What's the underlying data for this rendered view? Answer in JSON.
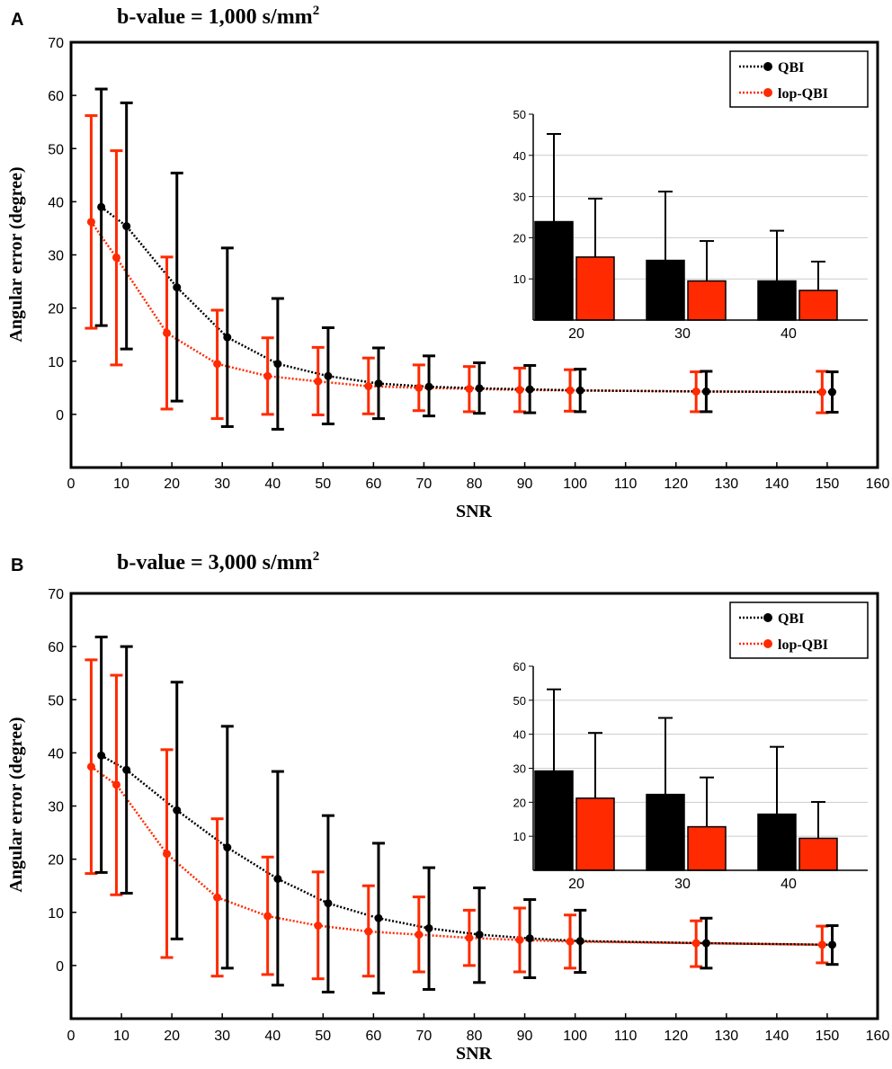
{
  "colors": {
    "qbi": "#000000",
    "lop": "#ff2a00",
    "frame": "#000000",
    "grid": "#cccccc"
  },
  "chart_data": [
    {
      "panel_label": "A",
      "type": "line",
      "title": "b-value = 1,000 s/mm",
      "title_superscript": "2",
      "xlabel": "SNR",
      "ylabel": "Angular error (degree)",
      "xlim": [
        0,
        160
      ],
      "ylim": [
        -10,
        70
      ],
      "xticks": [
        "0",
        "10",
        "20",
        "30",
        "40",
        "50",
        "60",
        "70",
        "80",
        "90",
        "100",
        "110",
        "120",
        "130",
        "140",
        "150",
        "160"
      ],
      "yticks": [
        "0",
        "10",
        "20",
        "30",
        "40",
        "50",
        "60",
        "70"
      ],
      "legend": [
        "QBI",
        "lop-QBI"
      ],
      "legend_position": "top-right",
      "series": [
        {
          "name": "QBI",
          "x": [
            6,
            11,
            21,
            31,
            41,
            51,
            61,
            71,
            81,
            91,
            101,
            126,
            151
          ],
          "y": [
            39,
            35.4,
            23.9,
            14.5,
            9.5,
            7.2,
            5.8,
            5.2,
            4.9,
            4.7,
            4.5,
            4.3,
            4.2
          ],
          "err_low": [
            16.7,
            12.3,
            2.5,
            -2.3,
            -2.8,
            -1.8,
            -0.8,
            -0.3,
            0.2,
            0.3,
            0.5,
            0.5,
            0.4
          ],
          "err_high": [
            61.2,
            58.6,
            45.4,
            31.3,
            21.8,
            16.3,
            12.5,
            11,
            9.7,
            9.2,
            8.5,
            8.1,
            8
          ]
        },
        {
          "name": "lop-QBI",
          "x": [
            4,
            9,
            19,
            29,
            39,
            49,
            59,
            69,
            79,
            89,
            99,
            124,
            149
          ],
          "y": [
            36.2,
            29.5,
            15.3,
            9.5,
            7.2,
            6.2,
            5.3,
            5,
            4.8,
            4.6,
            4.5,
            4.3,
            4.2
          ],
          "err_low": [
            16.2,
            9.3,
            1,
            -0.8,
            0,
            -0.1,
            0.1,
            0.7,
            0.5,
            0.5,
            0.6,
            0.5,
            0.3
          ],
          "err_high": [
            56.2,
            49.6,
            29.6,
            19.6,
            14.4,
            12.6,
            10.6,
            9.3,
            9,
            8.7,
            8.4,
            8,
            8.1
          ]
        }
      ],
      "inset": {
        "type": "bar",
        "categories": [
          "20",
          "30",
          "40"
        ],
        "ylim": [
          0,
          50
        ],
        "yticks": [
          "10",
          "20",
          "30",
          "40",
          "50"
        ],
        "grid": true,
        "series": [
          {
            "name": "QBI",
            "values": [
              23.9,
              14.5,
              9.5
            ],
            "err_high": [
              45.2,
              31.2,
              21.7
            ]
          },
          {
            "name": "lop-QBI",
            "values": [
              15.3,
              9.5,
              7.2
            ],
            "err_high": [
              29.5,
              19.2,
              14.2
            ]
          }
        ]
      }
    },
    {
      "panel_label": "B",
      "type": "line",
      "title": "b-value = 3,000 s/mm",
      "title_superscript": "2",
      "xlabel": "SNR",
      "ylabel": "Angular error (degree)",
      "xlim": [
        0,
        160
      ],
      "ylim": [
        -10,
        70
      ],
      "xticks": [
        "0",
        "10",
        "20",
        "30",
        "40",
        "50",
        "60",
        "70",
        "80",
        "90",
        "100",
        "110",
        "120",
        "130",
        "140",
        "150",
        "160"
      ],
      "yticks": [
        "0",
        "10",
        "20",
        "30",
        "40",
        "50",
        "60",
        "70"
      ],
      "legend": [
        "QBI",
        "lop-QBI"
      ],
      "legend_position": "top-right",
      "series": [
        {
          "name": "QBI",
          "x": [
            6,
            11,
            21,
            31,
            41,
            51,
            61,
            71,
            81,
            91,
            101,
            126,
            151
          ],
          "y": [
            39.5,
            36.8,
            29.2,
            22.2,
            16.3,
            11.7,
            8.9,
            7,
            5.8,
            5.1,
            4.6,
            4.2,
            3.9
          ],
          "err_low": [
            17.5,
            13.6,
            5,
            -0.5,
            -3.7,
            -5,
            -5.2,
            -4.5,
            -3.2,
            -2.3,
            -1.3,
            -0.5,
            0.2
          ],
          "err_high": [
            61.8,
            60,
            53.3,
            45,
            36.5,
            28.2,
            23,
            18.4,
            14.6,
            12.4,
            10.4,
            8.9,
            7.5
          ]
        },
        {
          "name": "lop-QBI",
          "x": [
            4,
            9,
            19,
            29,
            39,
            49,
            59,
            69,
            79,
            89,
            99,
            124,
            149
          ],
          "y": [
            37.4,
            34,
            21,
            12.8,
            9.3,
            7.5,
            6.4,
            5.8,
            5.2,
            4.8,
            4.5,
            4.2,
            3.9
          ],
          "err_low": [
            17.3,
            13.3,
            1.5,
            -2,
            -1.7,
            -2.5,
            -2,
            -1.2,
            0,
            -1.2,
            -0.5,
            -0.2,
            0.5
          ],
          "err_high": [
            57.5,
            54.6,
            40.6,
            27.6,
            20.4,
            17.6,
            15,
            12.9,
            10.4,
            10.8,
            9.5,
            8.4,
            7.4
          ]
        }
      ],
      "inset": {
        "type": "bar",
        "categories": [
          "20",
          "30",
          "40"
        ],
        "ylim": [
          0,
          60
        ],
        "yticks": [
          "10",
          "20",
          "30",
          "40",
          "50",
          "60"
        ],
        "grid": true,
        "series": [
          {
            "name": "QBI",
            "values": [
              29.2,
              22.3,
              16.5
            ],
            "err_high": [
              53.2,
              44.8,
              36.3
            ]
          },
          {
            "name": "lop-QBI",
            "values": [
              21.2,
              12.8,
              9.4
            ],
            "err_high": [
              40.4,
              27.3,
              20.1
            ]
          }
        ]
      }
    }
  ]
}
